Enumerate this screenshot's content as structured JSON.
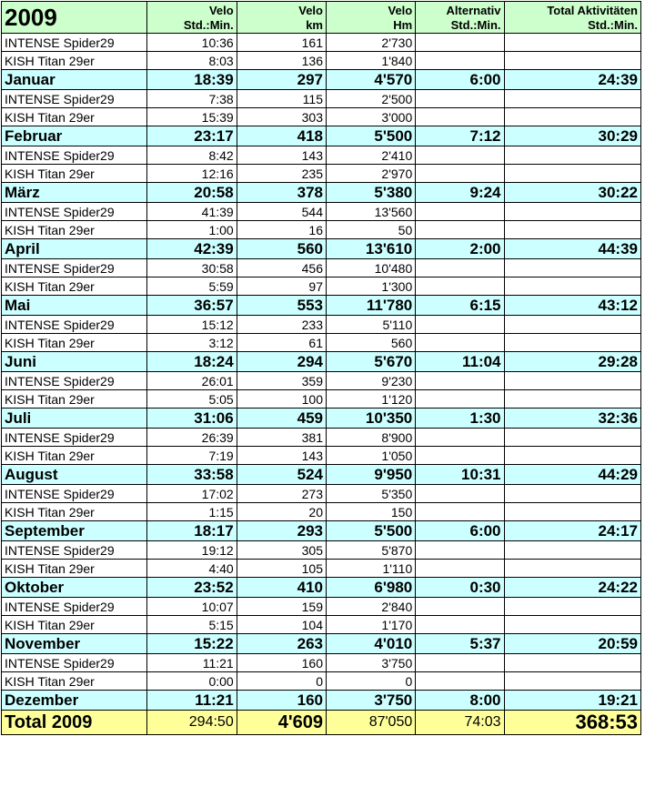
{
  "header": {
    "year": "2009",
    "col1": [
      "Velo",
      "Std.:Min."
    ],
    "col2": [
      "Velo",
      "km"
    ],
    "col3": [
      "Velo",
      "Hm"
    ],
    "col4": [
      "Alternativ",
      "Std.:Min."
    ],
    "col5": [
      "Total Aktivitäten",
      "Std.:Min."
    ]
  },
  "top_rows": [
    {
      "name": "INTENSE Spider29",
      "time": "10:36",
      "km": "161",
      "hm": "2'730"
    },
    {
      "name": "KISH Titan 29er",
      "time": "8:03",
      "km": "136",
      "hm": "1'840"
    }
  ],
  "months": [
    {
      "name": "Januar",
      "time": "18:39",
      "km": "297",
      "hm": "4'570",
      "alt": "6:00",
      "total": "24:39",
      "bikes": [
        {
          "name": "INTENSE Spider29",
          "time": "7:38",
          "km": "115",
          "hm": "2'500"
        },
        {
          "name": "KISH Titan 29er",
          "time": "15:39",
          "km": "303",
          "hm": "3'000"
        }
      ]
    },
    {
      "name": "Februar",
      "time": "23:17",
      "km": "418",
      "hm": "5'500",
      "alt": "7:12",
      "total": "30:29",
      "bikes": [
        {
          "name": "INTENSE Spider29",
          "time": "8:42",
          "km": "143",
          "hm": "2'410"
        },
        {
          "name": "KISH Titan 29er",
          "time": "12:16",
          "km": "235",
          "hm": "2'970"
        }
      ]
    },
    {
      "name": "März",
      "time": "20:58",
      "km": "378",
      "hm": "5'380",
      "alt": "9:24",
      "total": "30:22",
      "bikes": [
        {
          "name": "INTENSE Spider29",
          "time": "41:39",
          "km": "544",
          "hm": "13'560"
        },
        {
          "name": "KISH Titan 29er",
          "time": "1:00",
          "km": "16",
          "hm": "50"
        }
      ]
    },
    {
      "name": "April",
      "time": "42:39",
      "km": "560",
      "hm": "13'610",
      "alt": "2:00",
      "total": "44:39",
      "bikes": [
        {
          "name": "INTENSE Spider29",
          "time": "30:58",
          "km": "456",
          "hm": "10'480"
        },
        {
          "name": "KISH Titan 29er",
          "time": "5:59",
          "km": "97",
          "hm": "1'300"
        }
      ]
    },
    {
      "name": "Mai",
      "time": "36:57",
      "km": "553",
      "hm": "11'780",
      "alt": "6:15",
      "total": "43:12",
      "bikes": [
        {
          "name": "INTENSE Spider29",
          "time": "15:12",
          "km": "233",
          "hm": "5'110"
        },
        {
          "name": "KISH Titan 29er",
          "time": "3:12",
          "km": "61",
          "hm": "560"
        }
      ]
    },
    {
      "name": "Juni",
      "time": "18:24",
      "km": "294",
      "hm": "5'670",
      "alt": "11:04",
      "total": "29:28",
      "bikes": [
        {
          "name": "INTENSE Spider29",
          "time": "26:01",
          "km": "359",
          "hm": "9'230"
        },
        {
          "name": "KISH Titan 29er",
          "time": "5:05",
          "km": "100",
          "hm": "1'120"
        }
      ]
    },
    {
      "name": "Juli",
      "time": "31:06",
      "km": "459",
      "hm": "10'350",
      "alt": "1:30",
      "total": "32:36",
      "bikes": [
        {
          "name": "INTENSE Spider29",
          "time": "26:39",
          "km": "381",
          "hm": "8'900"
        },
        {
          "name": "KISH Titan 29er",
          "time": "7:19",
          "km": "143",
          "hm": "1'050"
        }
      ]
    },
    {
      "name": "August",
      "time": "33:58",
      "km": "524",
      "hm": "9'950",
      "alt": "10:31",
      "total": "44:29",
      "bikes": [
        {
          "name": "INTENSE Spider29",
          "time": "17:02",
          "km": "273",
          "hm": "5'350"
        },
        {
          "name": "KISH Titan 29er",
          "time": "1:15",
          "km": "20",
          "hm": "150"
        }
      ]
    },
    {
      "name": "September",
      "time": "18:17",
      "km": "293",
      "hm": "5'500",
      "alt": "6:00",
      "total": "24:17",
      "bikes": [
        {
          "name": "INTENSE Spider29",
          "time": "19:12",
          "km": "305",
          "hm": "5'870"
        },
        {
          "name": "KISH Titan 29er",
          "time": "4:40",
          "km": "105",
          "hm": "1'110"
        }
      ]
    },
    {
      "name": "Oktober",
      "time": "23:52",
      "km": "410",
      "hm": "6'980",
      "alt": "0:30",
      "total": "24:22",
      "bikes": [
        {
          "name": "INTENSE Spider29",
          "time": "10:07",
          "km": "159",
          "hm": "2'840"
        },
        {
          "name": "KISH Titan 29er",
          "time": "5:15",
          "km": "104",
          "hm": "1'170"
        }
      ]
    },
    {
      "name": "November",
      "time": "15:22",
      "km": "263",
      "hm": "4'010",
      "alt": "5:37",
      "total": "20:59",
      "bikes": [
        {
          "name": "INTENSE Spider29",
          "time": "11:21",
          "km": "160",
          "hm": "3'750"
        },
        {
          "name": "KISH Titan 29er",
          "time": "0:00",
          "km": "0",
          "hm": "0"
        }
      ]
    },
    {
      "name": "Dezember",
      "time": "11:21",
      "km": "160",
      "hm": "3'750",
      "alt": "8:00",
      "total": "19:21",
      "bikes": []
    }
  ],
  "total": {
    "label": "Total 2009",
    "time": "294:50",
    "km": "4'609",
    "hm": "87'050",
    "alt": "74:03",
    "total": "368:53"
  }
}
